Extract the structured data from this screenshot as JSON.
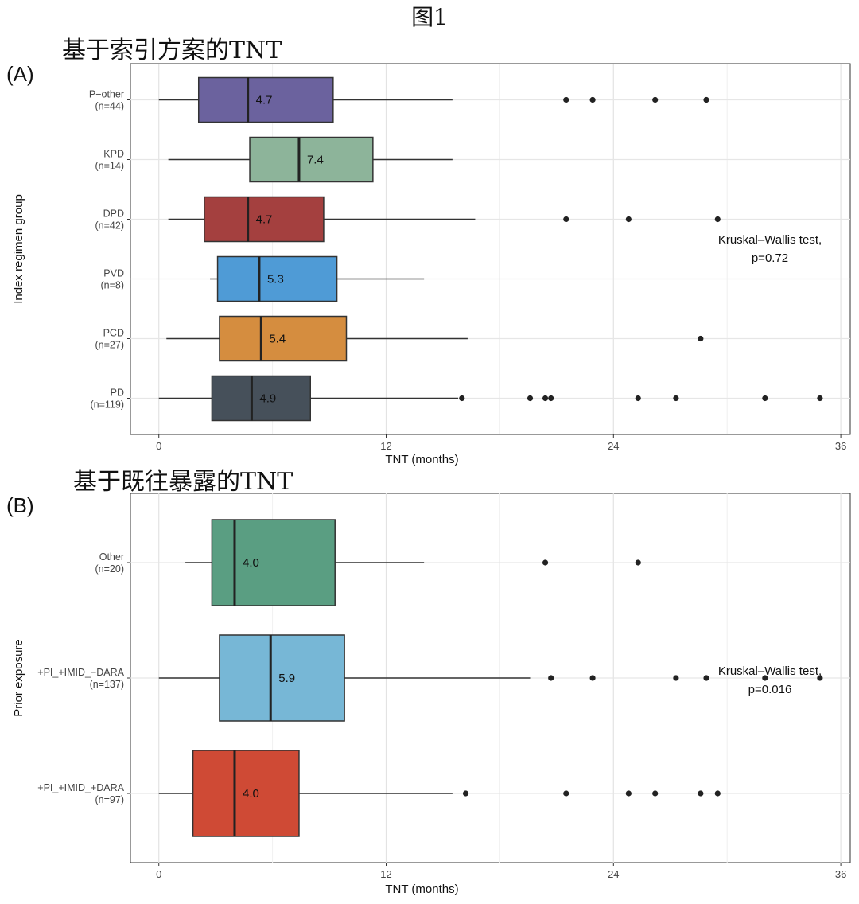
{
  "figure_title": "图1",
  "panels": [
    {
      "label": "(A)",
      "subtitle": "基于索引方案的TNT"
    },
    {
      "label": "(B)",
      "subtitle": "基于既往暴露的TNT"
    }
  ],
  "chart_data": [
    {
      "type": "boxplot",
      "orientation": "horizontal",
      "xlabel": "TNT (months)",
      "ylabel": "Index regimen group",
      "xlim": [
        -1.5,
        36.5
      ],
      "xticks": [
        0,
        12,
        24,
        36
      ],
      "grid": true,
      "annotation": {
        "line1": "Kruskal–Wallis test,",
        "line2": "p=0.72"
      },
      "groups": [
        {
          "name": "P−other",
          "n": "(n=44)",
          "color": "#6b629e",
          "whisker_low": 0.0,
          "q1": 2.1,
          "median": 4.7,
          "q3": 9.2,
          "whisker_high": 15.5,
          "outliers": [
            21.5,
            22.9,
            26.2,
            28.9
          ],
          "median_label": "4.7"
        },
        {
          "name": "KPD",
          "n": "(n=14)",
          "color": "#8db49a",
          "whisker_low": 0.5,
          "q1": 4.8,
          "median": 7.4,
          "q3": 11.3,
          "whisker_high": 15.5,
          "outliers": [],
          "median_label": "7.4"
        },
        {
          "name": "DPD",
          "n": "(n=42)",
          "color": "#a4403f",
          "whisker_low": 0.5,
          "q1": 2.4,
          "median": 4.7,
          "q3": 8.7,
          "whisker_high": 16.7,
          "outliers": [
            21.5,
            24.8,
            29.5
          ],
          "median_label": "4.7"
        },
        {
          "name": "PVD",
          "n": "(n=8)",
          "color": "#4f9bd6",
          "whisker_low": 2.7,
          "q1": 3.1,
          "median": 5.3,
          "q3": 9.4,
          "whisker_high": 14.0,
          "outliers": [],
          "median_label": "5.3"
        },
        {
          "name": "PCD",
          "n": "(n=27)",
          "color": "#d58d3f",
          "whisker_low": 0.4,
          "q1": 3.2,
          "median": 5.4,
          "q3": 9.9,
          "whisker_high": 16.3,
          "outliers": [
            28.6
          ],
          "median_label": "5.4"
        },
        {
          "name": "PD",
          "n": "(n=119)",
          "color": "#46505a",
          "whisker_low": 0.0,
          "q1": 2.8,
          "median": 4.9,
          "q3": 8.0,
          "whisker_high": 15.8,
          "outliers": [
            16.0,
            19.6,
            20.4,
            20.7,
            25.3,
            27.3,
            32.0,
            34.9
          ],
          "median_label": "4.9"
        }
      ]
    },
    {
      "type": "boxplot",
      "orientation": "horizontal",
      "xlabel": "TNT (months)",
      "ylabel": "Prior exposure",
      "xlim": [
        -1.5,
        36.5
      ],
      "xticks": [
        0,
        12,
        24,
        36
      ],
      "grid": true,
      "annotation": {
        "line1": "Kruskal–Wallis test,",
        "line2": "p=0.016"
      },
      "groups": [
        {
          "name": "Other",
          "n": "(n=20)",
          "color": "#5a9e82",
          "whisker_low": 1.4,
          "q1": 2.8,
          "median": 4.0,
          "q3": 9.3,
          "whisker_high": 14.0,
          "outliers": [
            20.4,
            25.3
          ],
          "median_label": "4.0"
        },
        {
          "name": "+PI_+IMID_−DARA",
          "n": "(n=137)",
          "color": "#77b7d6",
          "whisker_low": 0.0,
          "q1": 3.2,
          "median": 5.9,
          "q3": 9.8,
          "whisker_high": 19.6,
          "outliers": [
            20.7,
            22.9,
            27.3,
            28.9,
            32.0,
            34.9
          ],
          "median_label": "5.9"
        },
        {
          "name": "+PI_+IMID_+DARA",
          "n": "(n=97)",
          "color": "#cf4a35",
          "whisker_low": 0.0,
          "q1": 1.8,
          "median": 4.0,
          "q3": 7.4,
          "whisker_high": 15.5,
          "outliers": [
            16.2,
            21.5,
            24.8,
            26.2,
            28.6,
            29.5
          ],
          "median_label": "4.0"
        }
      ]
    }
  ]
}
